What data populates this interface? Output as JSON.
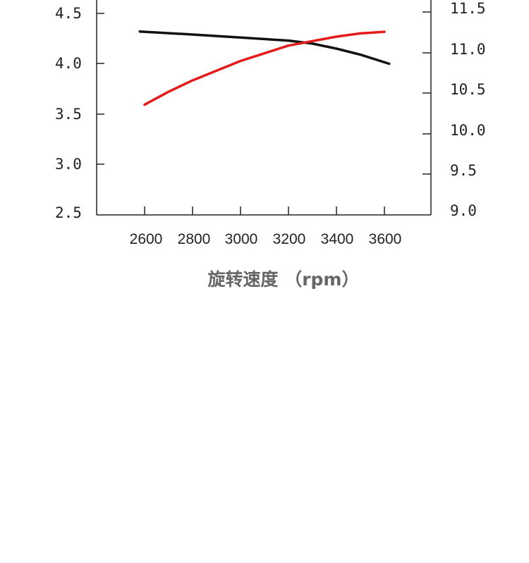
{
  "chart_data": {
    "type": "line",
    "title": "",
    "xlabel": "旋转速度 （rpm）",
    "x_ticks": [
      "2600",
      "2800",
      "3000",
      "3200",
      "3400",
      "3600"
    ],
    "y_left_ticks": [
      "4.5",
      "4.0",
      "3.5",
      "3.0",
      "2.5"
    ],
    "y_right_ticks": [
      "11.5",
      "11.0",
      "10.5",
      "10.0",
      "9.5",
      "9.0"
    ],
    "xlim": [
      2400,
      3600
    ],
    "ylim_left": [
      2.5,
      4.5
    ],
    "ylim_right": [
      9.0,
      11.5
    ],
    "grid": false,
    "series": [
      {
        "axis": "left",
        "color": "#111111",
        "x": [
          2580,
          2800,
          3000,
          3200,
          3300,
          3400,
          3500,
          3620
        ],
        "y": [
          4.32,
          4.29,
          4.26,
          4.23,
          4.2,
          4.15,
          4.09,
          4.0
        ]
      },
      {
        "axis": "right",
        "color": "#e31a1a",
        "x": [
          2600,
          2700,
          2800,
          3000,
          3200,
          3400,
          3500,
          3600
        ],
        "y": [
          10.36,
          10.52,
          10.66,
          10.9,
          11.09,
          11.2,
          11.24,
          11.26
        ]
      }
    ]
  }
}
